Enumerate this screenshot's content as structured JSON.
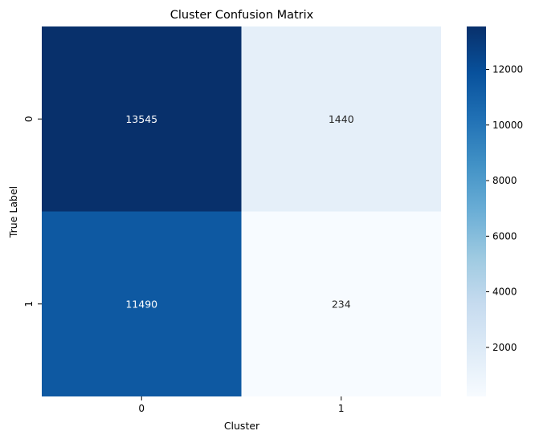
{
  "chart_data": {
    "type": "heatmap",
    "title": "Cluster Confusion Matrix",
    "xlabel": "Cluster",
    "ylabel": "True Label",
    "x_categories": [
      "0",
      "1"
    ],
    "y_categories": [
      "0",
      "1"
    ],
    "values": [
      [
        13545,
        1440
      ],
      [
        11490,
        234
      ]
    ],
    "colormap": "Blues",
    "color_range": [
      234,
      13545
    ],
    "colorbar_ticks": [
      2000,
      4000,
      6000,
      8000,
      10000,
      12000
    ],
    "colors": {
      "low": "#f7fbff",
      "high": "#08306b"
    }
  }
}
